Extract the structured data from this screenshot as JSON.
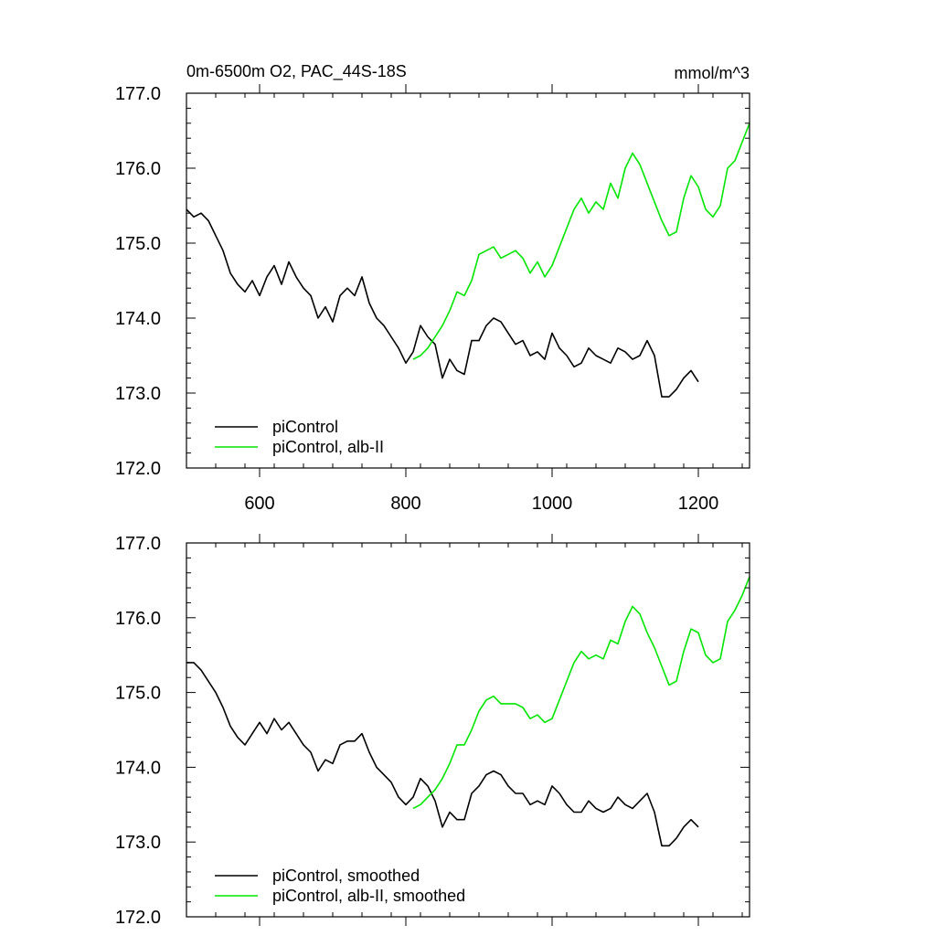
{
  "chart_data": [
    {
      "type": "line",
      "title": "0m-6500m O2, PAC_44S-18S",
      "units": "mmol/m^3",
      "xlim": [
        500,
        1270
      ],
      "ylim": [
        172.0,
        177.0
      ],
      "x_ticks": [
        600,
        800,
        1000,
        1200
      ],
      "x_tick_labels": [
        "600",
        "800",
        "1000",
        "1200"
      ],
      "y_ticks": [
        172.0,
        173.0,
        174.0,
        175.0,
        176.0,
        177.0
      ],
      "y_tick_labels": [
        "172.0",
        "173.0",
        "174.0",
        "175.0",
        "176.0",
        "177.0"
      ],
      "grid": false,
      "legend_position": "bottom-left",
      "series": [
        {
          "name": "piControl",
          "color": "#000000",
          "x": [
            500,
            510,
            520,
            530,
            540,
            550,
            560,
            570,
            580,
            590,
            600,
            610,
            620,
            630,
            640,
            650,
            660,
            670,
            680,
            690,
            700,
            710,
            720,
            730,
            740,
            750,
            760,
            770,
            780,
            790,
            800,
            810,
            820,
            830,
            840,
            850,
            860,
            870,
            880,
            890,
            900,
            910,
            920,
            930,
            940,
            950,
            960,
            970,
            980,
            990,
            1000,
            1010,
            1020,
            1030,
            1040,
            1050,
            1060,
            1070,
            1080,
            1090,
            1100,
            1110,
            1120,
            1130,
            1140,
            1150,
            1160,
            1170,
            1180,
            1190,
            1200
          ],
          "values": [
            175.45,
            175.35,
            175.4,
            175.3,
            175.1,
            174.9,
            174.6,
            174.45,
            174.35,
            174.5,
            174.3,
            174.55,
            174.7,
            174.45,
            174.75,
            174.55,
            174.4,
            174.3,
            174.0,
            174.15,
            173.95,
            174.3,
            174.4,
            174.3,
            174.55,
            174.2,
            174.0,
            173.9,
            173.75,
            173.6,
            173.4,
            173.55,
            173.9,
            173.75,
            173.65,
            173.2,
            173.45,
            173.3,
            173.25,
            173.7,
            173.7,
            173.9,
            174.0,
            173.95,
            173.8,
            173.65,
            173.7,
            173.5,
            173.55,
            173.45,
            173.8,
            173.6,
            173.5,
            173.35,
            173.4,
            173.6,
            173.5,
            173.45,
            173.4,
            173.6,
            173.55,
            173.45,
            173.5,
            173.7,
            173.5,
            172.95,
            172.95,
            173.05,
            173.2,
            173.3,
            173.15
          ]
        },
        {
          "name": "piControl, alb-II",
          "color": "#00e600",
          "x": [
            810,
            820,
            830,
            840,
            850,
            860,
            870,
            880,
            890,
            900,
            910,
            920,
            930,
            940,
            950,
            960,
            970,
            980,
            990,
            1000,
            1010,
            1020,
            1030,
            1040,
            1050,
            1060,
            1070,
            1080,
            1090,
            1100,
            1110,
            1120,
            1130,
            1140,
            1150,
            1160,
            1170,
            1180,
            1190,
            1200,
            1210,
            1220,
            1230,
            1240,
            1250,
            1260,
            1270
          ],
          "values": [
            173.45,
            173.5,
            173.6,
            173.75,
            173.9,
            174.1,
            174.35,
            174.3,
            174.5,
            174.85,
            174.9,
            174.95,
            174.8,
            174.85,
            174.9,
            174.8,
            174.6,
            174.75,
            174.55,
            174.7,
            174.95,
            175.2,
            175.45,
            175.6,
            175.4,
            175.55,
            175.45,
            175.8,
            175.6,
            176.0,
            176.2,
            176.05,
            175.8,
            175.55,
            175.3,
            175.1,
            175.15,
            175.6,
            175.9,
            175.75,
            175.45,
            175.35,
            175.5,
            176.0,
            176.1,
            176.35,
            176.6
          ]
        }
      ]
    },
    {
      "type": "line",
      "xlim": [
        500,
        1270
      ],
      "ylim": [
        172.0,
        177.0
      ],
      "x_ticks": [
        600,
        800,
        1000,
        1200
      ],
      "y_ticks": [
        172.0,
        173.0,
        174.0,
        175.0,
        176.0,
        177.0
      ],
      "y_tick_labels": [
        "172.0",
        "173.0",
        "174.0",
        "175.0",
        "176.0",
        "177.0"
      ],
      "grid": false,
      "legend_position": "bottom-left",
      "series": [
        {
          "name": "piControl, smoothed",
          "color": "#000000",
          "x": [
            500,
            510,
            520,
            530,
            540,
            550,
            560,
            570,
            580,
            590,
            600,
            610,
            620,
            630,
            640,
            650,
            660,
            670,
            680,
            690,
            700,
            710,
            720,
            730,
            740,
            750,
            760,
            770,
            780,
            790,
            800,
            810,
            820,
            830,
            840,
            850,
            860,
            870,
            880,
            890,
            900,
            910,
            920,
            930,
            940,
            950,
            960,
            970,
            980,
            990,
            1000,
            1010,
            1020,
            1030,
            1040,
            1050,
            1060,
            1070,
            1080,
            1090,
            1100,
            1110,
            1120,
            1130,
            1140,
            1150,
            1160,
            1170,
            1180,
            1190,
            1200
          ],
          "values": [
            175.4,
            175.4,
            175.3,
            175.15,
            175.0,
            174.8,
            174.55,
            174.4,
            174.3,
            174.45,
            174.6,
            174.45,
            174.65,
            174.5,
            174.6,
            174.45,
            174.3,
            174.2,
            173.95,
            174.1,
            174.05,
            174.3,
            174.35,
            174.35,
            174.45,
            174.2,
            174.0,
            173.9,
            173.8,
            173.6,
            173.5,
            173.6,
            173.85,
            173.75,
            173.55,
            173.2,
            173.4,
            173.3,
            173.3,
            173.65,
            173.75,
            173.9,
            173.95,
            173.9,
            173.75,
            173.65,
            173.65,
            173.5,
            173.55,
            173.5,
            173.75,
            173.65,
            173.5,
            173.4,
            173.4,
            173.55,
            173.45,
            173.4,
            173.45,
            173.6,
            173.5,
            173.45,
            173.55,
            173.65,
            173.4,
            172.95,
            172.95,
            173.05,
            173.2,
            173.3,
            173.2
          ]
        },
        {
          "name": "piControl, alb-II, smoothed",
          "color": "#00e600",
          "x": [
            810,
            820,
            830,
            840,
            850,
            860,
            870,
            880,
            890,
            900,
            910,
            920,
            930,
            940,
            950,
            960,
            970,
            980,
            990,
            1000,
            1010,
            1020,
            1030,
            1040,
            1050,
            1060,
            1070,
            1080,
            1090,
            1100,
            1110,
            1120,
            1130,
            1140,
            1150,
            1160,
            1170,
            1180,
            1190,
            1200,
            1210,
            1220,
            1230,
            1240,
            1250,
            1260,
            1270
          ],
          "values": [
            173.45,
            173.5,
            173.6,
            173.7,
            173.85,
            174.05,
            174.3,
            174.3,
            174.5,
            174.75,
            174.9,
            174.95,
            174.85,
            174.85,
            174.85,
            174.8,
            174.65,
            174.7,
            174.6,
            174.65,
            174.9,
            175.15,
            175.4,
            175.55,
            175.45,
            175.5,
            175.45,
            175.7,
            175.65,
            175.95,
            176.15,
            176.05,
            175.8,
            175.6,
            175.35,
            175.1,
            175.15,
            175.55,
            175.85,
            175.8,
            175.5,
            175.4,
            175.45,
            175.95,
            176.1,
            176.3,
            176.55
          ]
        }
      ]
    }
  ]
}
